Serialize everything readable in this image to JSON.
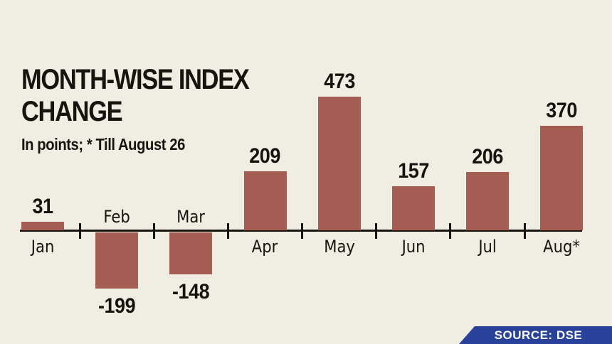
{
  "header": {
    "title": "MONTH-WISE INDEX CHANGE",
    "subtitle": "In points; * Till August 26"
  },
  "source_banner": {
    "label": "SOURCE: DSE"
  },
  "colors": {
    "background": "#F0EDE3",
    "bar": "#A55D53",
    "axis": "#17130E",
    "text": "#17130E",
    "banner_bg": "#28429A",
    "banner_text": "#FFFFFF"
  },
  "chart_data": {
    "type": "bar",
    "title": "MONTH-WISE INDEX CHANGE",
    "subtitle": "In points; * Till August 26",
    "unit": "index points",
    "categories": [
      "Jan",
      "Feb",
      "Mar",
      "Apr",
      "May",
      "Jun",
      "Jul",
      "Aug*"
    ],
    "values": [
      31,
      -199,
      -148,
      209,
      473,
      157,
      206,
      370
    ],
    "baseline": 0,
    "ylim": [
      -250,
      520
    ],
    "grid": false,
    "legend": false,
    "bar_color": "#A55D53",
    "value_labels_shown": true,
    "footnote": "* Till August 26",
    "source": "SOURCE: DSE"
  }
}
